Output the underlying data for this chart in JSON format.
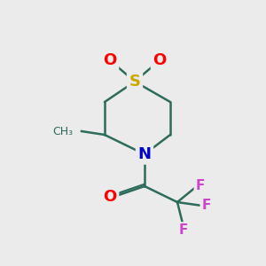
{
  "background_color": "#ebebeb",
  "bond_color": "#2d6b5a",
  "bond_width": 1.8,
  "atom_colors": {
    "S": "#c8a800",
    "N": "#0000cc",
    "O": "#ff0000",
    "F": "#cc44cc"
  },
  "atom_fontsizes": {
    "S": 13,
    "N": 13,
    "O": 13,
    "F": 11
  },
  "methyl_fontsize": 9,
  "methyl_color": "#2d6b5a",
  "figsize": [
    3.0,
    3.0
  ],
  "dpi": 100,
  "xlim": [
    0,
    300
  ],
  "ylim": [
    0,
    300
  ]
}
